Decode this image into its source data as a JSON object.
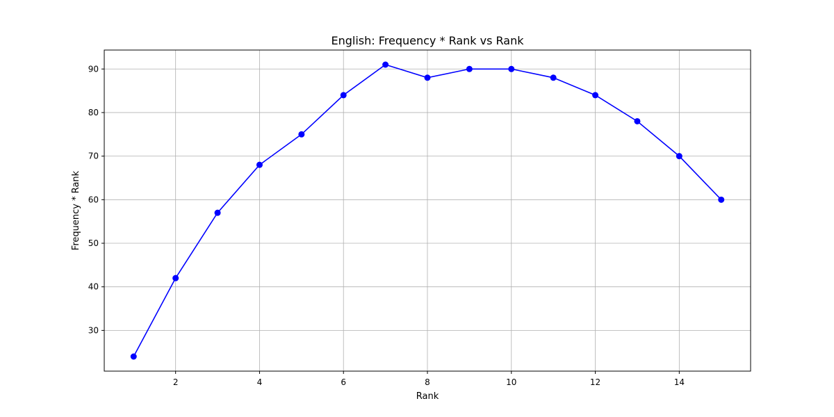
{
  "chart_data": {
    "type": "line",
    "title": "English: Frequency * Rank vs Rank",
    "xlabel": "Rank",
    "ylabel": "Frequency * Rank",
    "x": [
      1,
      2,
      3,
      4,
      5,
      6,
      7,
      8,
      9,
      10,
      11,
      12,
      13,
      14,
      15
    ],
    "series": [
      {
        "values": [
          24,
          42,
          57,
          68,
          75,
          84,
          91,
          88,
          90,
          90,
          88,
          84,
          78,
          70,
          60
        ],
        "color": "#0000ff",
        "marker": "circle"
      }
    ],
    "xlim": [
      0.3,
      15.7
    ],
    "ylim": [
      20.65,
      94.35
    ],
    "x_ticks": [
      2,
      4,
      6,
      8,
      10,
      12,
      14
    ],
    "x_tick_labels": [
      "2",
      "4",
      "6",
      "8",
      "10",
      "12",
      "14"
    ],
    "y_ticks": [
      30,
      40,
      50,
      60,
      70,
      80,
      90
    ],
    "y_tick_labels": [
      "30",
      "40",
      "50",
      "60",
      "70",
      "80",
      "90"
    ],
    "grid": true,
    "colors": {
      "grid": "#b0b0b0",
      "axes": "#000000"
    }
  }
}
